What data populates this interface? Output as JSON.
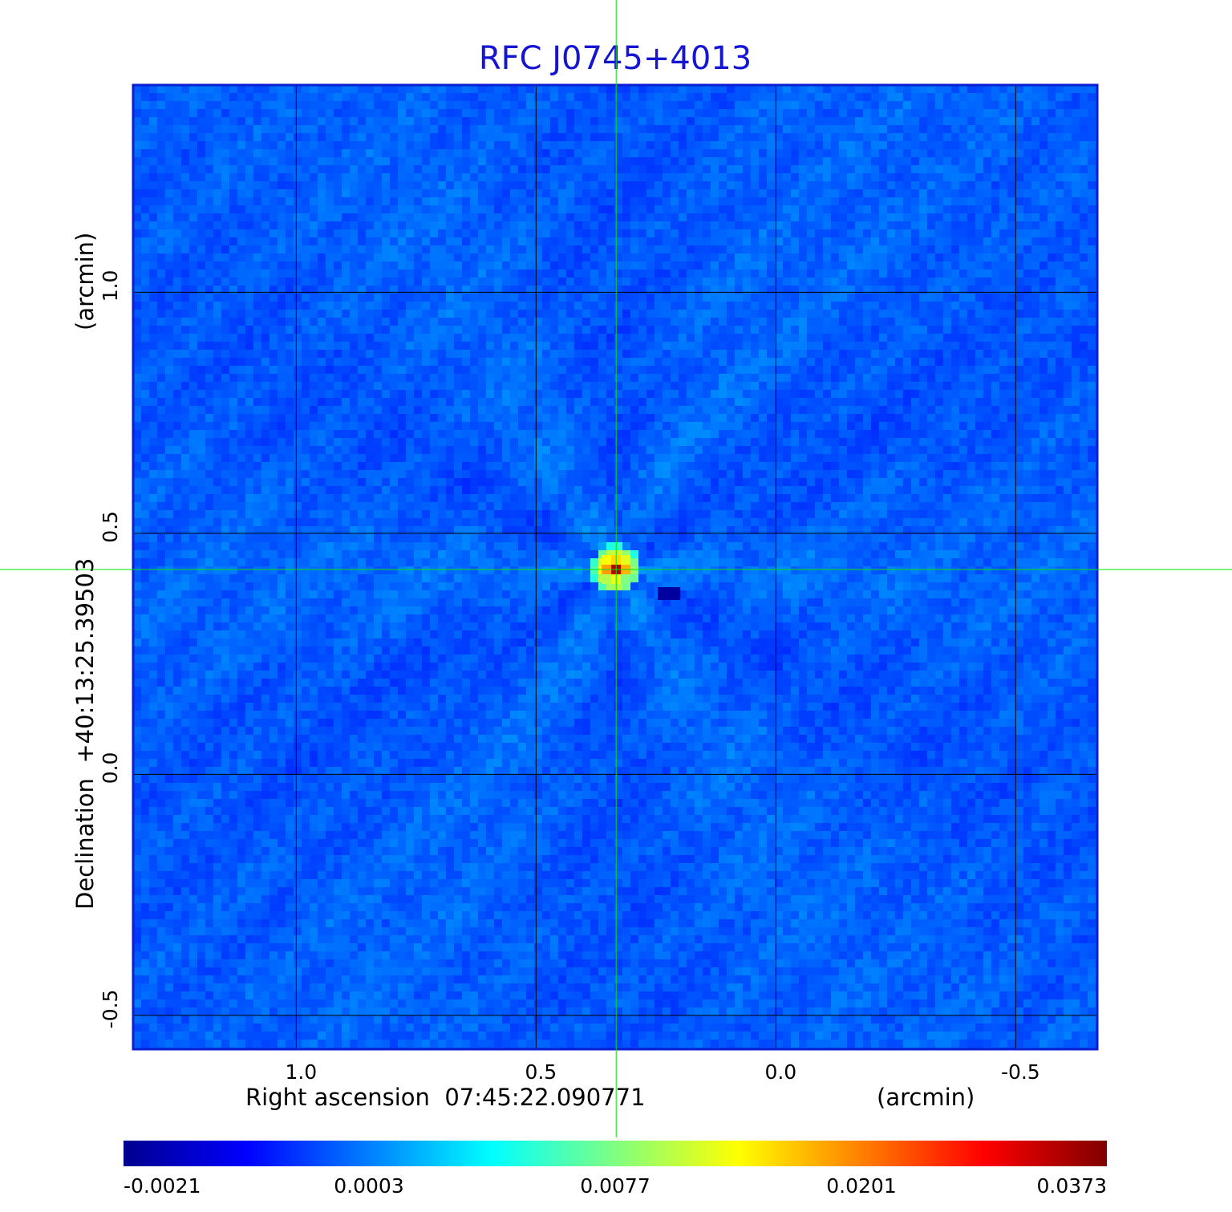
{
  "chart_data": {
    "type": "heatmap",
    "title": "RFC J0745+4013",
    "xlabel": "Right ascension  07:45:22.090771",
    "xunit": "(arcmin)",
    "ylabel": "Declination  +40:13:25.39503",
    "yunit": "(arcmin)",
    "x_ticks": [
      "1.0",
      "0.5",
      "0.0",
      "-0.5"
    ],
    "y_ticks": [
      "1.0",
      "0.5",
      "0.0",
      "-0.5"
    ],
    "x_tick_values": [
      1.0,
      0.5,
      0.0,
      -0.5
    ],
    "y_tick_values": [
      1.0,
      0.5,
      0.0,
      -0.5
    ],
    "xlim": [
      1.34,
      -0.67
    ],
    "ylim": [
      -0.57,
      1.43
    ],
    "grid": true,
    "crosshair": {
      "x": 0.333,
      "y": 0.425
    },
    "source_peak": {
      "x": 0.333,
      "y": 0.425,
      "value": 0.0373
    },
    "colorbar": {
      "ticks": [
        "-0.0021",
        "0.0003",
        "0.0077",
        "0.0201",
        "0.0373"
      ],
      "colormap": [
        "#00008f",
        "#0000ff",
        "#0080ff",
        "#00ffff",
        "#80ff80",
        "#ffff00",
        "#ff8000",
        "#ff0000",
        "#800000"
      ]
    },
    "colors": {
      "background_field": "#1e82f0",
      "frame": "#0a1ed2",
      "grid": "#000000",
      "crosshair": "#00e600",
      "title": "#1414d2"
    }
  }
}
